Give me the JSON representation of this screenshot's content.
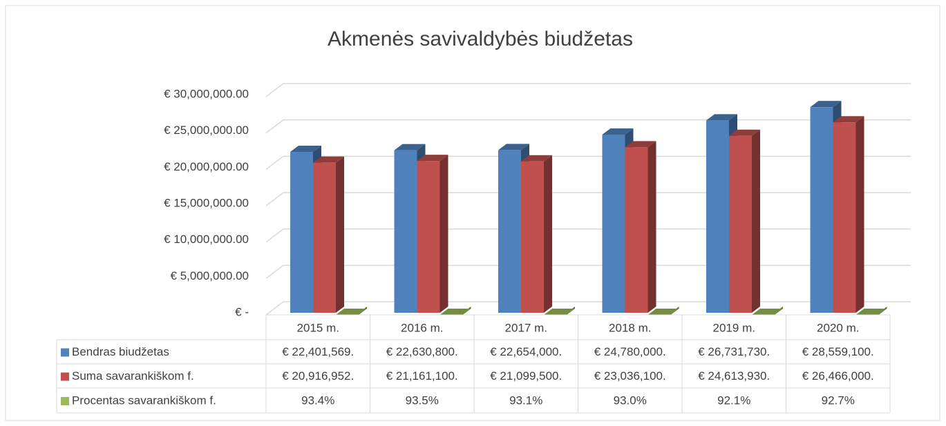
{
  "chart_data": {
    "type": "bar",
    "title": "Akmenės savivaldybės biudžetas",
    "categories": [
      "2015 m.",
      "2016 m.",
      "2017 m.",
      "2018 m.",
      "2019 m.",
      "2020 m."
    ],
    "series": [
      {
        "name": "Bendras biudžetas",
        "color": "#4f81bd",
        "values": [
          22401569,
          22630800,
          22654000,
          24780000,
          26731730,
          28559100
        ],
        "value_labels": [
          "€ 22,401,569.",
          "€ 22,630,800.",
          "€ 22,654,000.",
          "€ 24,780,000.",
          "€ 26,731,730.",
          "€ 28,559,100."
        ]
      },
      {
        "name": "Suma savarankiškom f.",
        "color": "#c0504d",
        "values": [
          20916952,
          21161100,
          21099500,
          23036100,
          24613930,
          26466000
        ],
        "value_labels": [
          "€ 20,916,952.",
          "€ 21,161,100.",
          "€ 21,099,500.",
          "€ 23,036,100.",
          "€ 24,613,930.",
          "€ 26,466,000."
        ]
      },
      {
        "name": "Procentas savarankiškom f.",
        "color": "#9bbb59",
        "values": [
          93.4,
          93.5,
          93.1,
          93.0,
          92.1,
          92.7
        ],
        "value_labels": [
          "93.4%",
          "93.5%",
          "93.1%",
          "93.0%",
          "92.1%",
          "92.7%"
        ]
      }
    ],
    "ylim": [
      0,
      30000000
    ],
    "yticks": [
      {
        "value": 0,
        "label": "€ -"
      },
      {
        "value": 5000000,
        "label": "€ 5,000,000.00"
      },
      {
        "value": 10000000,
        "label": "€ 10,000,000.00"
      },
      {
        "value": 15000000,
        "label": "€ 15,000,000.00"
      },
      {
        "value": 20000000,
        "label": "€ 20,000,000.00"
      },
      {
        "value": 25000000,
        "label": "€ 25,000,000.00"
      },
      {
        "value": 30000000,
        "label": "€ 30,000,000.00"
      }
    ],
    "grid": true
  }
}
